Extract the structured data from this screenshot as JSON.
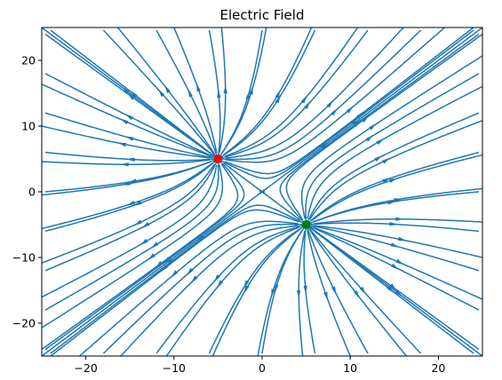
{
  "chart_data": {
    "type": "streamplot",
    "title": "Electric Field",
    "xlabel": "",
    "ylabel": "",
    "xlim": [
      -25,
      25
    ],
    "ylim": [
      -25,
      25
    ],
    "xticks": [
      -20,
      -10,
      0,
      10,
      20
    ],
    "yticks": [
      -20,
      -10,
      0,
      10,
      20
    ],
    "grid": false,
    "stream_color": "#1f77b4",
    "charges": [
      {
        "name": "red",
        "x": -5,
        "y": 5,
        "color": "#ff0000",
        "q": 1
      },
      {
        "name": "green",
        "x": 5,
        "y": -5,
        "color": "#008000",
        "q": 1
      }
    ],
    "tick_labels_x": [
      "−20",
      "−10",
      "0",
      "10",
      "20"
    ],
    "tick_labels_y": [
      "−20",
      "−10",
      "0",
      "10",
      "20"
    ]
  }
}
